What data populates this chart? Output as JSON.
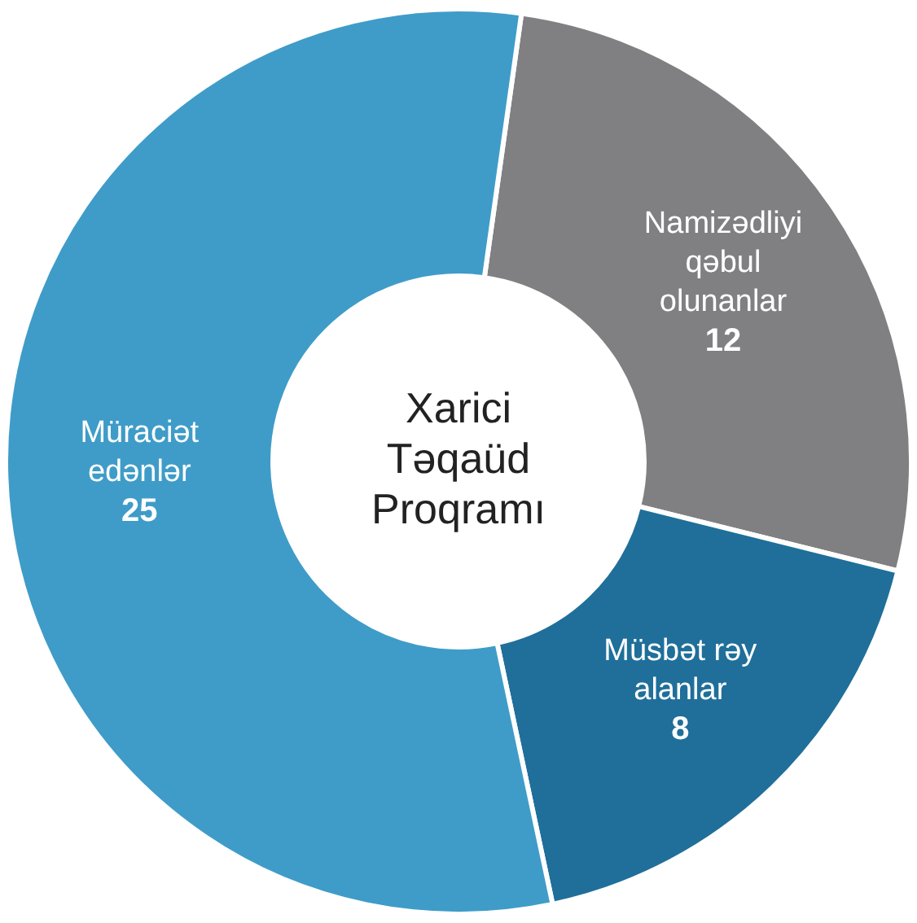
{
  "chart_data": {
    "type": "donut",
    "title": "Xarici Təqaüd Proqramı",
    "categories": [
      "Namizədliyi qəbul olunanlar",
      "Müsbət rəy alanlar",
      "Müraciət edənlər"
    ],
    "values": [
      12,
      8,
      25
    ],
    "colors": [
      "#808083",
      "#1f6f9a",
      "#3f9cc8"
    ],
    "data_labels": true,
    "legend": false
  }
}
